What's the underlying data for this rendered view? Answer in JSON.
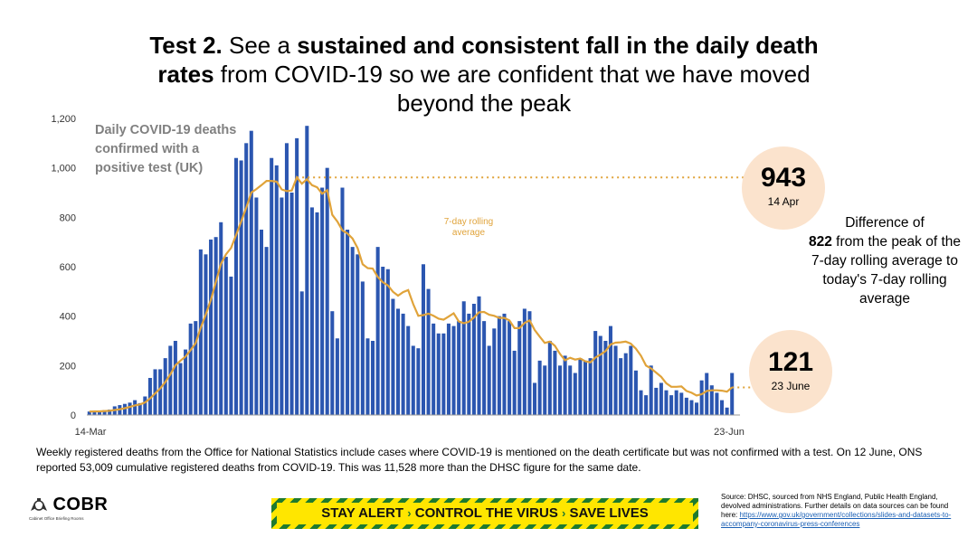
{
  "title": {
    "prefix": "Test 2.",
    "part1": " See a ",
    "bold1": "sustained and consistent fall in the daily death rates",
    "part2": " from COVID-19 so we are confident that we have moved beyond the peak"
  },
  "colors": {
    "bars": "#2b56b0",
    "rolling_line": "#e0a33a",
    "circle_fill": "#fbe3cd",
    "grey_text": "#808080"
  },
  "chart_data": {
    "type": "bar",
    "title": "Daily COVID-19 deaths confirmed with a positive test (UK)",
    "xlabel": "",
    "ylabel": "",
    "x_tick_labels": [
      "14-Mar",
      "23-Jun"
    ],
    "ylim": [
      0,
      1200
    ],
    "y_ticks": [
      0,
      200,
      400,
      600,
      800,
      1000,
      1200
    ],
    "y_tick_labels": [
      "0",
      "200",
      "400",
      "600",
      "800",
      "1,000",
      "1,200"
    ],
    "grid": false,
    "series": [
      {
        "name": "Daily COVID-19 deaths confirmed with a positive test (UK)",
        "values": [
          14,
          15,
          15,
          20,
          22,
          35,
          40,
          45,
          50,
          60,
          48,
          75,
          150,
          185,
          185,
          230,
          280,
          300,
          210,
          265,
          370,
          380,
          670,
          650,
          710,
          720,
          780,
          640,
          560,
          1040,
          1030,
          1100,
          1150,
          880,
          750,
          680,
          1040,
          1010,
          880,
          1100,
          900,
          1120,
          500,
          1170,
          840,
          820,
          920,
          1000,
          420,
          310,
          920,
          750,
          680,
          650,
          540,
          310,
          300,
          680,
          600,
          590,
          470,
          430,
          410,
          360,
          280,
          270,
          610,
          510,
          370,
          330,
          330,
          370,
          360,
          380,
          460,
          410,
          450,
          480,
          380,
          280,
          350,
          400,
          410,
          380,
          260,
          380,
          430,
          420,
          130,
          220,
          200,
          300,
          260,
          200,
          240,
          200,
          170,
          230,
          220,
          230,
          340,
          320,
          300,
          360,
          280,
          230,
          250,
          280,
          180,
          100,
          80,
          200,
          110,
          130,
          100,
          80,
          100,
          90,
          70,
          60,
          50,
          140,
          170,
          120,
          90,
          60,
          30,
          170
        ]
      },
      {
        "name": "7-day rolling average",
        "type": "line"
      }
    ],
    "annotations": {
      "line_label": "7-day rolling average",
      "peak_value": "943",
      "peak_date": "14 Apr",
      "current_value": "121",
      "current_date": "23 June"
    }
  },
  "diff_text": {
    "line1": "Difference of",
    "number": "822",
    "line2": "from the peak of the 7-day rolling average to today's 7-day rolling average"
  },
  "footnote": "Weekly registered deaths from the Office for National Statistics include cases where COVID-19 is mentioned on the death certificate but was not confirmed with a test. On 12 June, ONS reported 53,009 cumulative registered deaths from COVID-19. This was 11,528 more than the DHSC figure for the same date.",
  "logo": {
    "name": "COBR",
    "sub": "Cabinet Office Briefing Rooms",
    "icon": "royal-crest-icon"
  },
  "banner": {
    "p1": "STAY ALERT",
    "p2": "CONTROL THE VIRUS",
    "p3": "SAVE LIVES",
    "sep": "›"
  },
  "source": {
    "text": "Source: DHSC, sourced from NHS England, Public Health England, devolved administrations. Further details on data sources can be found here: ",
    "link": "https://www.gov.uk/government/collections/slides-and-datasets-to-accompany-coronavirus-press-conferences"
  }
}
